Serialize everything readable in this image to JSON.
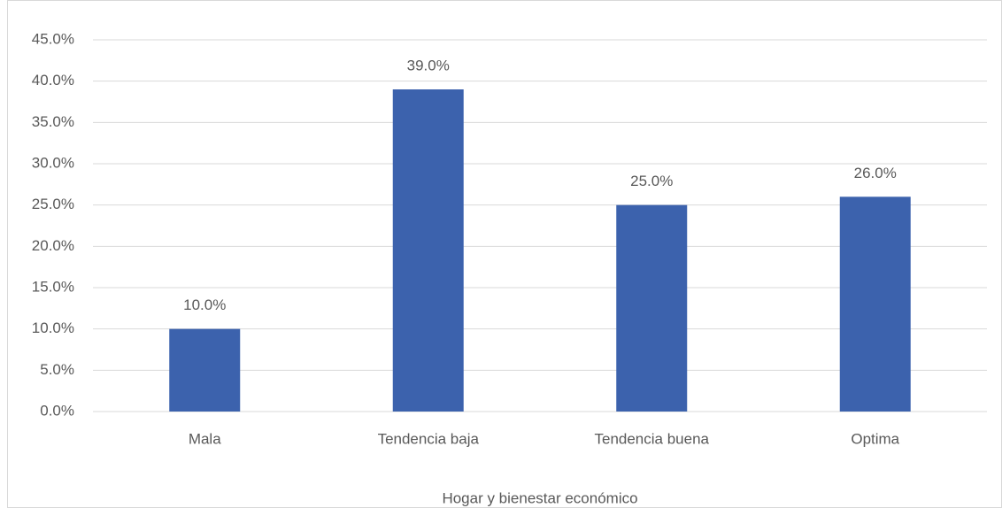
{
  "chart_data": {
    "type": "bar",
    "x_label": "Hogar y bienestar económico",
    "categories": [
      "Mala",
      "Tendencia baja",
      "Tendencia buena",
      "Optima"
    ],
    "values": [
      10,
      39,
      25,
      26
    ],
    "value_labels": [
      "10.0%",
      "39.0%",
      "25.0%",
      "26.0%"
    ],
    "color": "#3c62ad",
    "ylim": [
      0,
      45
    ],
    "yticks": [
      {
        "value": 0,
        "label": "0.0%"
      },
      {
        "value": 5,
        "label": "5.0%"
      },
      {
        "value": 10,
        "label": "10.0%"
      },
      {
        "value": 15,
        "label": "15.0%"
      },
      {
        "value": 20,
        "label": "20.0%"
      },
      {
        "value": 25,
        "label": "25.0%"
      },
      {
        "value": 30,
        "label": "30.0%"
      },
      {
        "value": 35,
        "label": "35.0%"
      },
      {
        "value": 40,
        "label": "40.0%"
      },
      {
        "value": 45,
        "label": "45.0%"
      }
    ],
    "grid": true
  }
}
